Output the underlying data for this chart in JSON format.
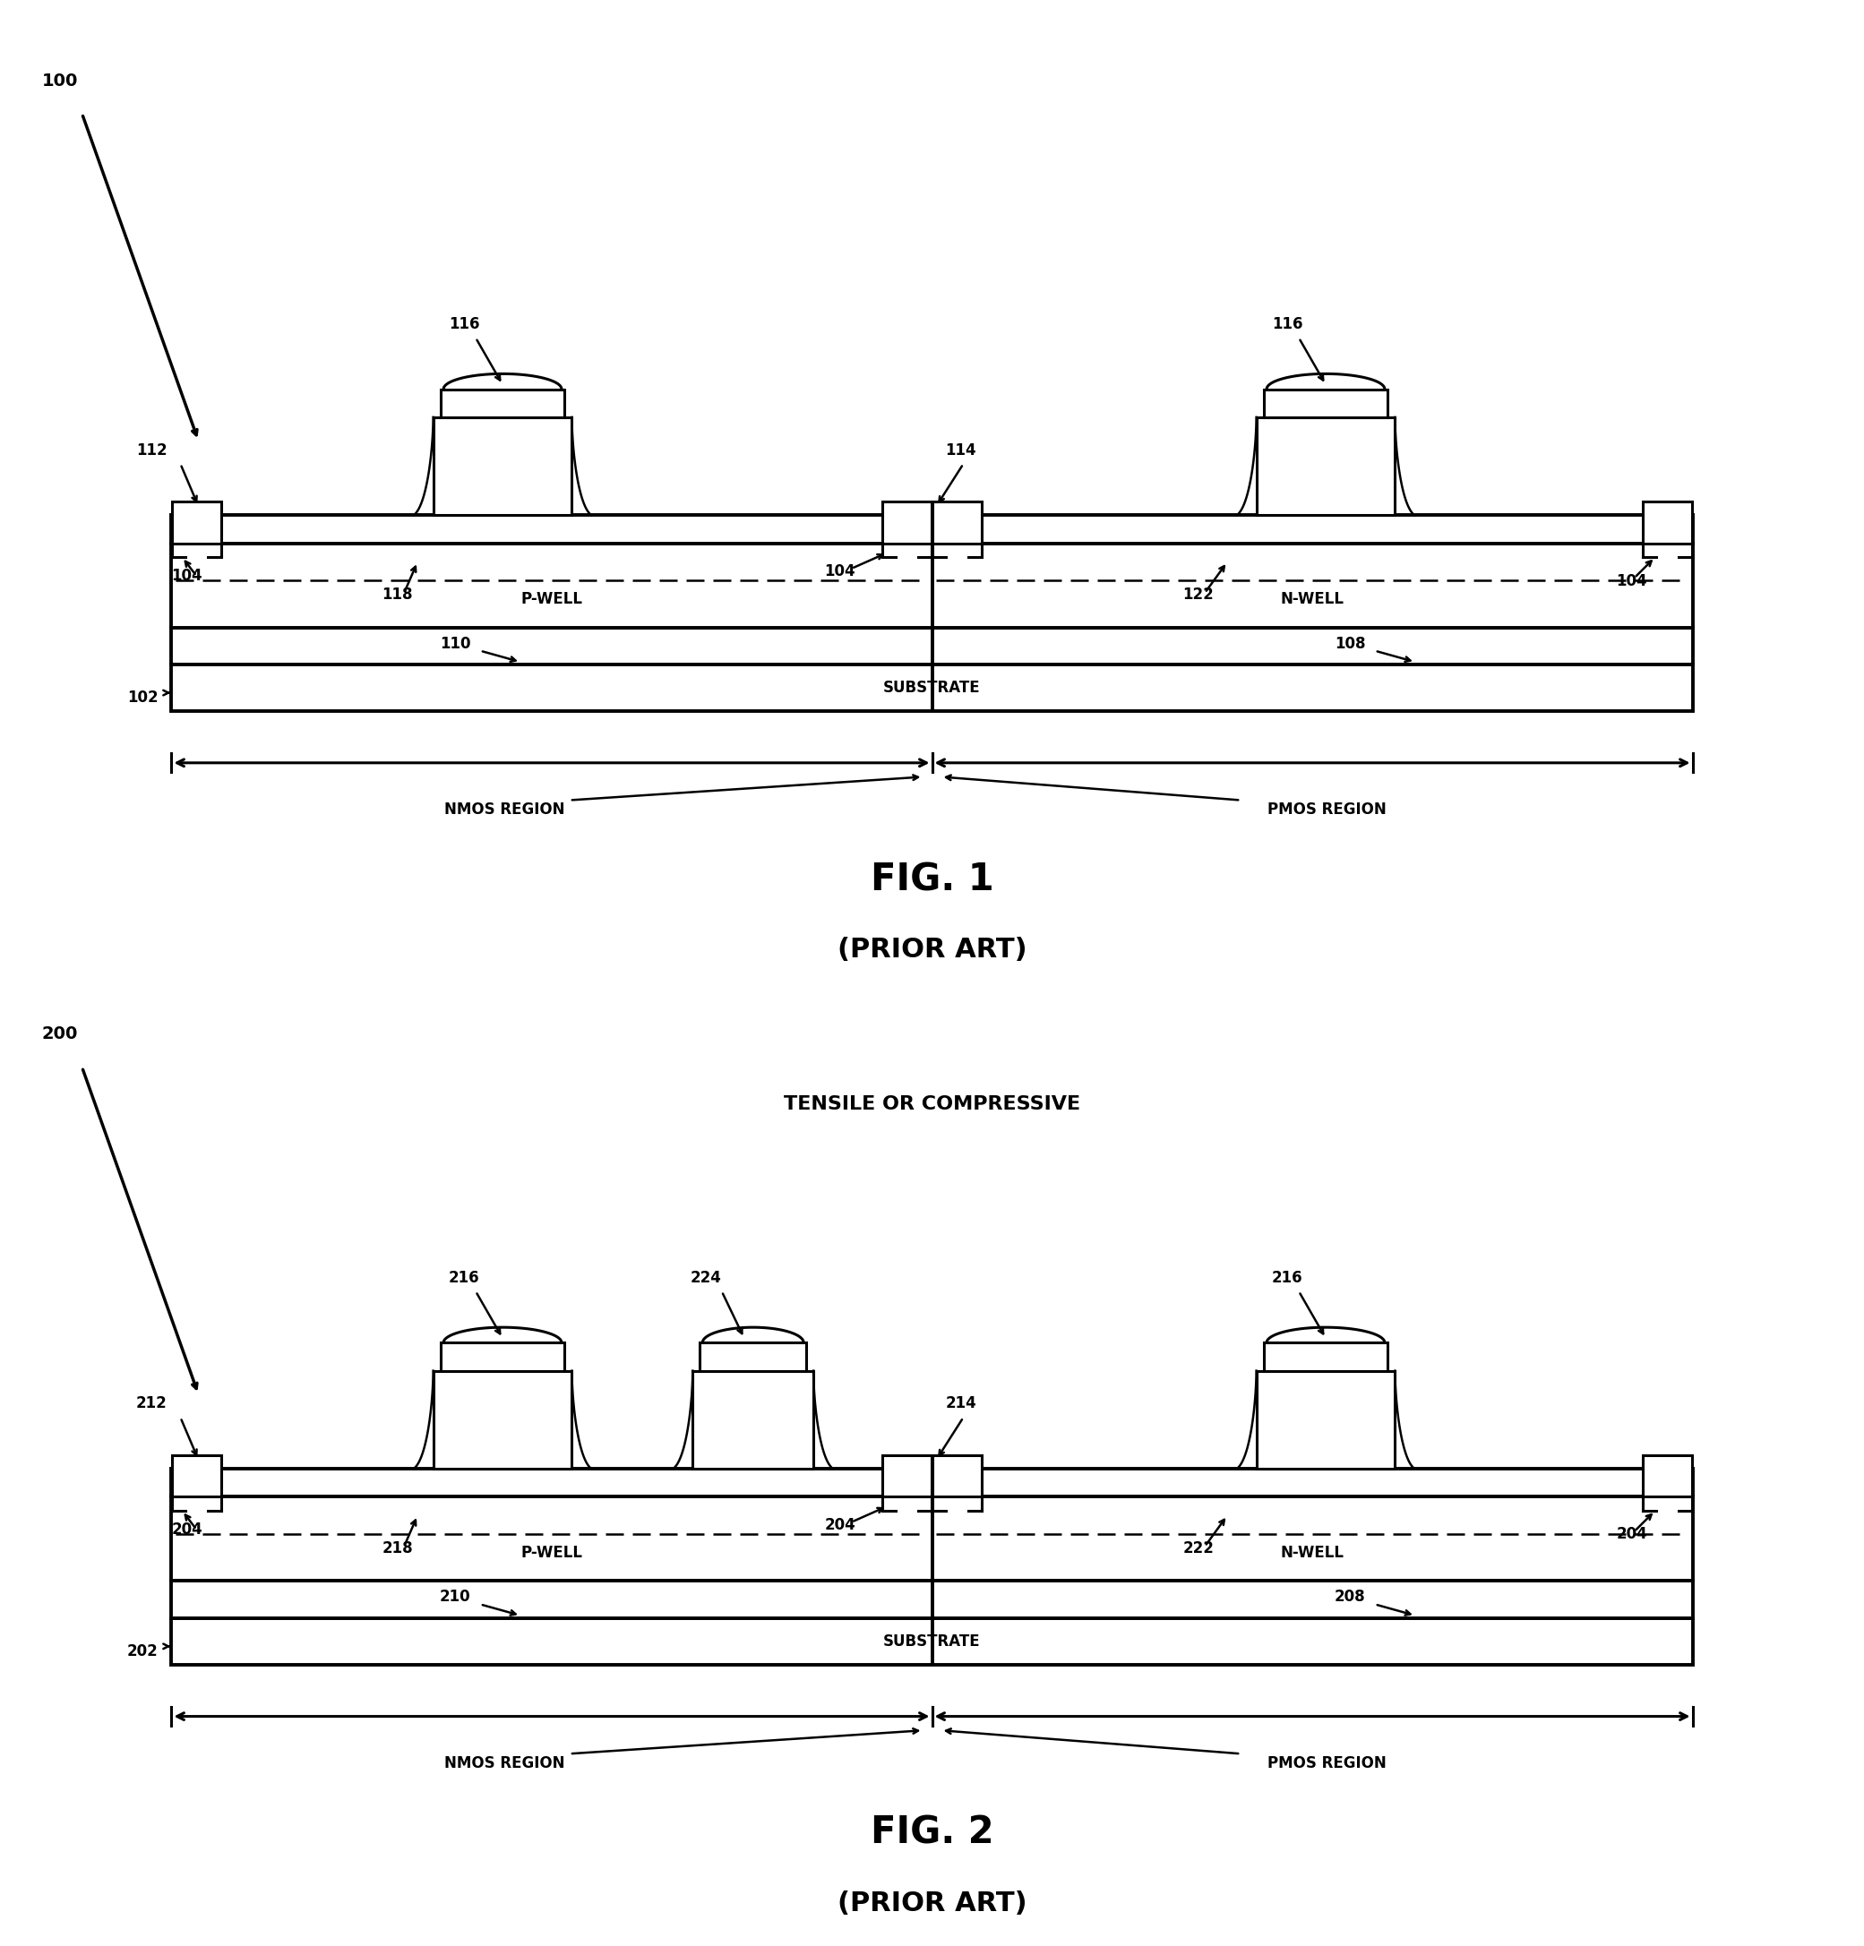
{
  "fig_width": 20.81,
  "fig_height": 21.73,
  "bg_color": "#ffffff",
  "lc": "#000000",
  "diagrams": [
    {
      "ref": "100",
      "title": "FIG. 1",
      "sub": "(PRIOR ART)",
      "top_label": null,
      "has_mid_gate": false,
      "gate_labels": [
        "116",
        "116"
      ],
      "edge_labels": [
        "112",
        "114"
      ],
      "sti_labels": [
        "104",
        "118",
        "104",
        "122",
        "104"
      ],
      "pwell": "P-WELL",
      "nwell": "N-WELL",
      "substrate": "SUBSTRATE",
      "epi_l": "110",
      "epi_r": "108",
      "base": "102",
      "nmos": "NMOS REGION",
      "pmos": "PMOS REGION",
      "mid_gate_label": null
    },
    {
      "ref": "200",
      "title": "FIG. 2",
      "sub": "(PRIOR ART)",
      "top_label": "TENSILE OR COMPRESSIVE",
      "has_mid_gate": true,
      "gate_labels": [
        "216",
        "216"
      ],
      "edge_labels": [
        "212",
        "214"
      ],
      "sti_labels": [
        "204",
        "218",
        "204",
        "222",
        "204"
      ],
      "pwell": "P-WELL",
      "nwell": "N-WELL",
      "substrate": "SUBSTRATE",
      "epi_l": "210",
      "epi_r": "208",
      "base": "202",
      "nmos": "NMOS REGION",
      "pmos": "PMOS REGION",
      "mid_gate_label": "224"
    }
  ]
}
